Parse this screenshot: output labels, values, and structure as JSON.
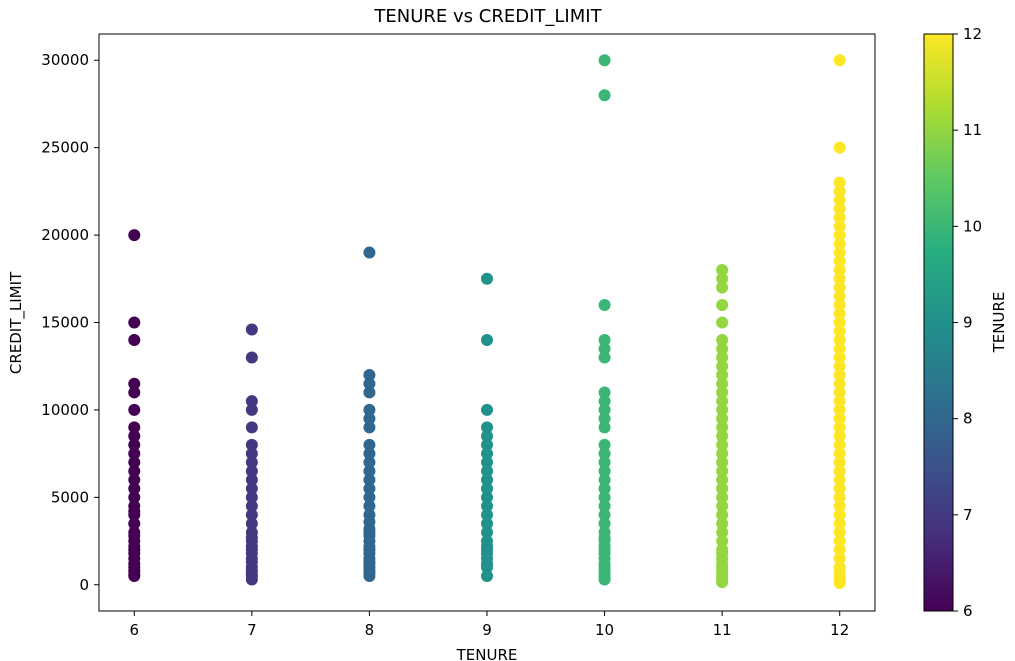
{
  "chart_data": {
    "type": "scatter",
    "title": "TENURE vs CREDIT_LIMIT",
    "xlabel": "TENURE",
    "ylabel": "CREDIT_LIMIT",
    "xlim": [
      5.7,
      12.3
    ],
    "ylim": [
      -1500,
      31500
    ],
    "x_ticks": [
      6,
      7,
      8,
      9,
      10,
      11,
      12
    ],
    "y_ticks": [
      0,
      5000,
      10000,
      15000,
      20000,
      25000,
      30000
    ],
    "grid": false,
    "colormap": "viridis",
    "colorbar": {
      "label": "TENURE",
      "min": 6,
      "max": 12,
      "ticks": [
        6,
        7,
        8,
        9,
        10,
        11,
        12
      ],
      "stops": [
        "#440154",
        "#472d7b",
        "#3b528b",
        "#2c728e",
        "#21918c",
        "#28ae80",
        "#5ec962",
        "#addc30",
        "#fde725"
      ]
    },
    "series": [
      {
        "x": 6,
        "values": [
          20000,
          15000,
          14000,
          11500,
          11000,
          10000,
          9000,
          8500,
          8000,
          7500,
          7000,
          6500,
          6000,
          5500,
          5000,
          4500,
          4200,
          4000,
          3500,
          3000,
          2800,
          2500,
          2200,
          2000,
          1800,
          1500,
          1200,
          1000,
          800,
          600,
          500
        ]
      },
      {
        "x": 7,
        "values": [
          14600,
          13000,
          10500,
          10000,
          9000,
          8000,
          7500,
          7000,
          6500,
          6000,
          5500,
          5000,
          4500,
          4000,
          3500,
          3000,
          2700,
          2500,
          2200,
          2000,
          1800,
          1500,
          1300,
          1000,
          800,
          600,
          500,
          300
        ]
      },
      {
        "x": 8,
        "values": [
          19000,
          12000,
          11500,
          11000,
          10000,
          9500,
          9000,
          8000,
          7500,
          7000,
          6500,
          6000,
          5500,
          5000,
          4500,
          4000,
          3600,
          3200,
          3000,
          2800,
          2500,
          2200,
          2000,
          1800,
          1500,
          1300,
          1200,
          1000,
          800,
          700,
          500
        ]
      },
      {
        "x": 9,
        "values": [
          17500,
          14000,
          10000,
          9000,
          8500,
          8000,
          7500,
          7000,
          6500,
          6000,
          5500,
          5000,
          4500,
          4000,
          3500,
          3000,
          2500,
          2200,
          2000,
          1800,
          1500,
          1200,
          1000,
          500
        ]
      },
      {
        "x": 10,
        "values": [
          30000,
          28000,
          16000,
          14000,
          13500,
          13000,
          11000,
          10500,
          10000,
          9500,
          9000,
          8000,
          7500,
          7000,
          6500,
          6000,
          5500,
          5000,
          4500,
          4000,
          3500,
          3000,
          2700,
          2500,
          2200,
          2000,
          1800,
          1500,
          1200,
          1000,
          800,
          600,
          400,
          300
        ]
      },
      {
        "x": 11,
        "values": [
          18000,
          17500,
          17000,
          16000,
          15000,
          14000,
          13500,
          13000,
          12500,
          12000,
          11500,
          11000,
          10500,
          10000,
          9500,
          9000,
          8500,
          8000,
          7500,
          7000,
          6500,
          6000,
          5500,
          5000,
          4500,
          4000,
          3500,
          3000,
          2500,
          2000,
          1800,
          1500,
          1200,
          1000,
          800,
          600,
          400,
          300,
          150
        ]
      },
      {
        "x": 12,
        "values": [
          30000,
          25000,
          23000,
          22500,
          22000,
          21500,
          21000,
          20500,
          20000,
          19500,
          19000,
          18500,
          18000,
          17500,
          17000,
          16500,
          16000,
          15500,
          15000,
          14500,
          14000,
          13500,
          13000,
          12500,
          12000,
          11500,
          11000,
          10500,
          10000,
          9500,
          9000,
          8500,
          8000,
          7500,
          7000,
          6500,
          6000,
          5500,
          5000,
          4500,
          4000,
          3500,
          3000,
          2500,
          2000,
          1500,
          1000,
          800,
          500,
          300,
          100
        ]
      }
    ]
  }
}
